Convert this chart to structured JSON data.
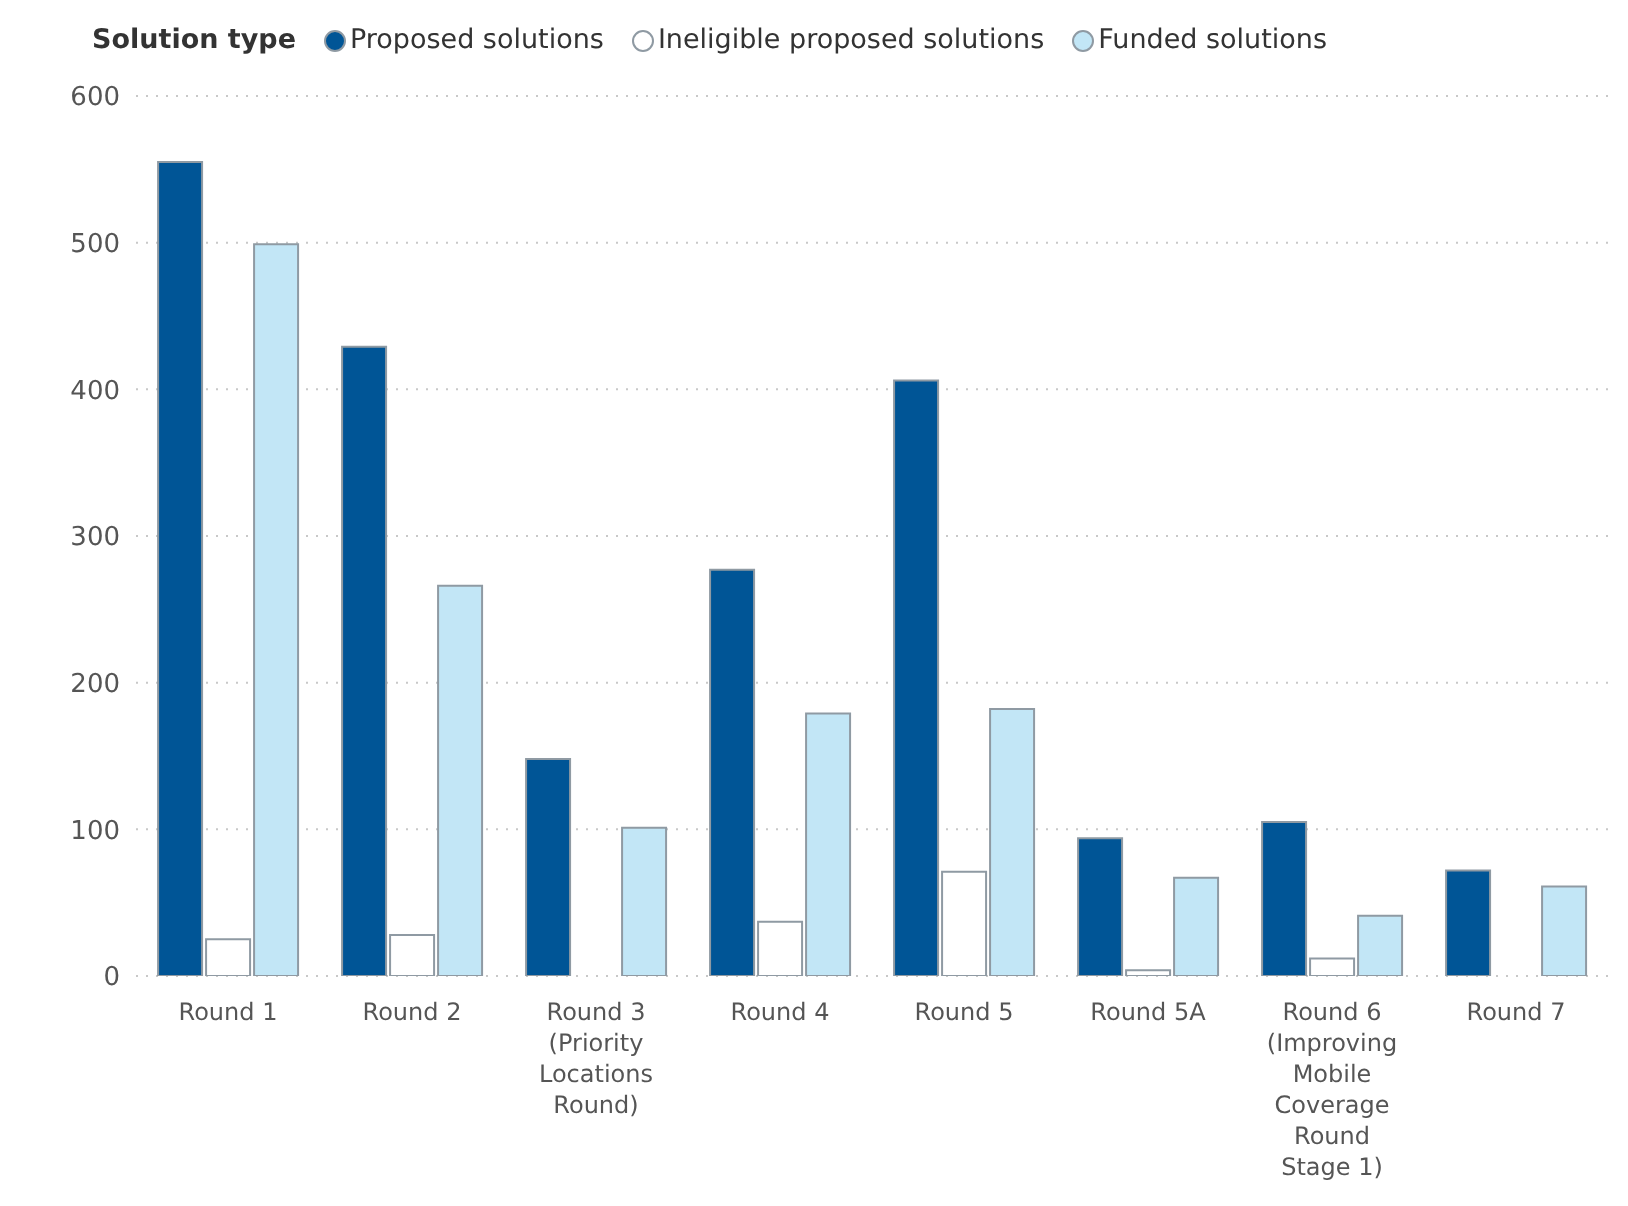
{
  "chart_data": {
    "type": "bar",
    "legend_title": "Solution type",
    "categories": [
      "Round 1",
      "Round 2",
      "Round 3 (Priority Locations Round)",
      "Round 4",
      "Round 5",
      "Round 5A",
      "Round 6 (Improving Mobile Coverage Round Stage 1)",
      "Round 7"
    ],
    "series": [
      {
        "name": "Proposed solutions",
        "color": "#005596",
        "values": [
          555,
          429,
          148,
          277,
          406,
          94,
          105,
          72
        ]
      },
      {
        "name": "Ineligible proposed solutions",
        "color": "#ffffff",
        "values": [
          25,
          28,
          0,
          37,
          71,
          4,
          12,
          0
        ]
      },
      {
        "name": "Funded solutions",
        "color": "#c2e6f6",
        "values": [
          499,
          266,
          101,
          179,
          182,
          67,
          41,
          61
        ]
      }
    ],
    "ylim": [
      0,
      600
    ],
    "yticks": [
      0,
      100,
      200,
      300,
      400,
      500,
      600
    ],
    "grid": "y",
    "legend": "top left"
  }
}
